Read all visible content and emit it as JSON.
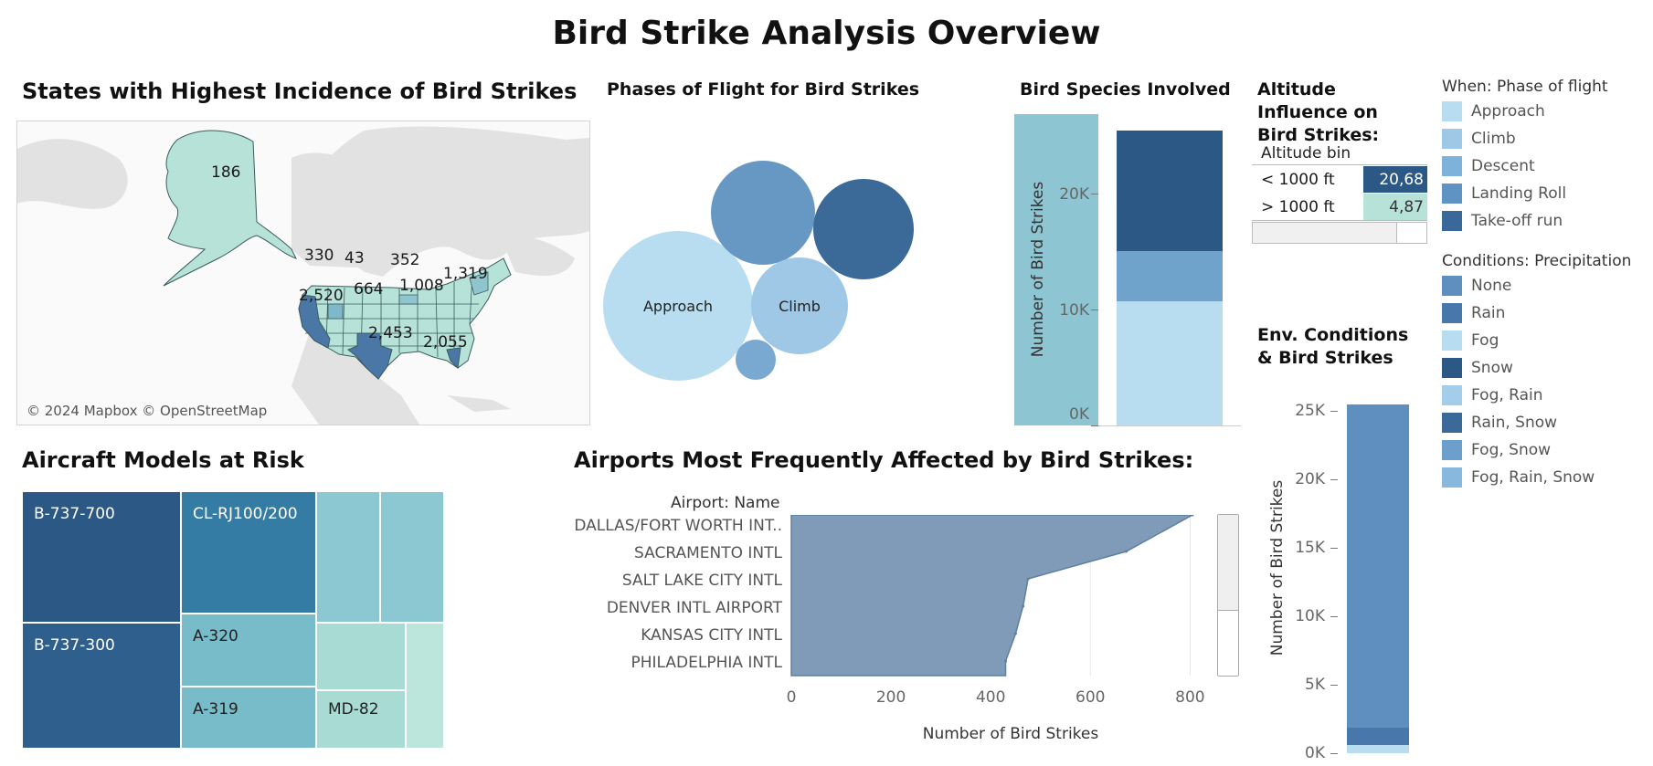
{
  "dashboard_title": "Bird Strike Analysis Overview",
  "map": {
    "title": "States with Highest Incidence of Bird Strikes",
    "attribution": "© 2024 Mapbox © OpenStreetMap",
    "labels": [
      {
        "state": "AK",
        "value": "186"
      },
      {
        "state": "WA",
        "value": "330"
      },
      {
        "state": "MT",
        "value": "43"
      },
      {
        "state": "MN",
        "value": "352"
      },
      {
        "state": "NY",
        "value": "1,319"
      },
      {
        "state": "CA",
        "value": "2,520"
      },
      {
        "state": "CO",
        "value": "664"
      },
      {
        "state": "IL",
        "value": "1,008"
      },
      {
        "state": "TX",
        "value": "2,453"
      },
      {
        "state": "FL",
        "value": "2,055"
      }
    ],
    "colors": {
      "land": "#e2e2e2",
      "low": "#b6e2d8",
      "high": "#4a77a6",
      "border": "#3a5d5d"
    }
  },
  "phases": {
    "title": "Phases of Flight for Bird Strikes",
    "bubbles": [
      {
        "label": "Approach",
        "color": "#b9ddf0"
      },
      {
        "label": "",
        "color": "#6798c3"
      },
      {
        "label": "",
        "color": "#3b6a99"
      },
      {
        "label": "Climb",
        "color": "#9ec8e6"
      },
      {
        "label": "",
        "color": "#79a9d1"
      }
    ]
  },
  "species": {
    "title": "Bird Species Involved",
    "ylabel": "Number of Bird Strikes",
    "ticks": [
      "20K",
      "10K",
      "0K"
    ],
    "ylim": [
      0,
      27000
    ],
    "segments": [
      {
        "value": 10800,
        "color": "#b9ddf0"
      },
      {
        "value": 4300,
        "color": "#6fa3cb"
      },
      {
        "value": 10500,
        "color": "#2c5885"
      }
    ]
  },
  "altitude": {
    "title": "Altitude Influence on Bird Strikes:",
    "header": "Altitude bin",
    "rows": [
      {
        "label": "< 1000 ft",
        "value": "20,68",
        "color": "#2c5885",
        "text_color": "#ffffff"
      },
      {
        "label": "> 1000 ft",
        "value": "4,87",
        "color": "#b6e2d8",
        "text_color": "#333333"
      }
    ]
  },
  "legend_phase": {
    "title": "When: Phase of flight",
    "items": [
      {
        "label": "Approach",
        "color": "#b9ddf0"
      },
      {
        "label": "Climb",
        "color": "#9ec8e6"
      },
      {
        "label": "Descent",
        "color": "#7fb2da"
      },
      {
        "label": "Landing Roll",
        "color": "#5f93c4"
      },
      {
        "label": "Take-off run",
        "color": "#3a6899"
      }
    ]
  },
  "legend_precip": {
    "title": "Conditions: Precipitation",
    "items": [
      {
        "label": "None",
        "color": "#5e8fbf"
      },
      {
        "label": "Rain",
        "color": "#4877ac"
      },
      {
        "label": "Fog",
        "color": "#b9ddf0"
      },
      {
        "label": "Snow",
        "color": "#2c5885"
      },
      {
        "label": "Fog, Rain",
        "color": "#a3cde9"
      },
      {
        "label": "Rain, Snow",
        "color": "#3b6a99"
      },
      {
        "label": "Fog, Snow",
        "color": "#6d9fcc"
      },
      {
        "label": "Fog, Rain, Snow",
        "color": "#88b8de"
      }
    ]
  },
  "env": {
    "title": "Env. Conditions & Bird Strikes",
    "ylabel": "Number of Bird Strikes",
    "ticks": [
      "25K",
      "20K",
      "15K",
      "10K",
      "5K",
      "0K"
    ],
    "ylim": [
      0,
      26000
    ],
    "segments": [
      {
        "value": 600,
        "color": "#b9ddf0"
      },
      {
        "value": 1300,
        "color": "#4877ac"
      },
      {
        "value": 23600,
        "color": "#5e8fbf"
      }
    ]
  },
  "aircraft": {
    "title": "Aircraft Models at Risk",
    "cells": [
      {
        "label": "B-737-700",
        "color": "#2c5885"
      },
      {
        "label": "B-737-300",
        "color": "#2f5f8c"
      },
      {
        "label": "CL-RJ100/200",
        "color": "#347ca3"
      },
      {
        "label": "A-320",
        "color": "#79bcc9"
      },
      {
        "label": "A-319",
        "color": "#79bcc9"
      },
      {
        "label": "",
        "color": "#8cc8d1"
      },
      {
        "label": "",
        "color": "#8cc8d1"
      },
      {
        "label": "MD-82",
        "color": "#a8dbd4"
      },
      {
        "label": "",
        "color": "#bce6dc"
      }
    ]
  },
  "airports": {
    "title": "Airports Most Frequently Affected by Bird Strikes:",
    "header": "Airport: Name",
    "names": [
      "DALLAS/FORT WORTH INT..",
      "SACRAMENTO INTL",
      "SALT LAKE CITY INTL",
      "DENVER INTL AIRPORT",
      "KANSAS CITY INTL",
      "PHILADELPHIA INTL"
    ],
    "xlabel": "Number of Bird Strikes",
    "xticks": [
      "0",
      "200",
      "400",
      "600",
      "800"
    ],
    "color": "#7f9bb8"
  },
  "chart_data": [
    {
      "type": "bar",
      "title": "Bird Species Involved",
      "ylabel": "Number of Bird Strikes",
      "ylim": [
        0,
        27000
      ],
      "categories": [
        ""
      ],
      "series": [
        {
          "values": [
            10800
          ]
        },
        {
          "values": [
            4300
          ]
        },
        {
          "values": [
            10500
          ]
        }
      ]
    },
    {
      "type": "area",
      "title": "Airports Most Frequently Affected by Bird Strikes:",
      "xlabel": "Number of Bird Strikes",
      "xlim": [
        0,
        880
      ],
      "categories": [
        "DALLAS/FORT WORTH INT..",
        "SACRAMENTO INTL",
        "SALT LAKE CITY INTL",
        "DENVER INTL AIRPORT",
        "KANSAS CITY INTL",
        "PHILADELPHIA INTL"
      ],
      "values": [
        805,
        672,
        475,
        465,
        450,
        430
      ]
    },
    {
      "type": "bar",
      "title": "Env. Conditions & Bird Strikes",
      "ylabel": "Number of Bird Strikes",
      "ylim": [
        0,
        26000
      ],
      "categories": [
        ""
      ],
      "series": [
        {
          "name": "Fog",
          "values": [
            600
          ]
        },
        {
          "name": "Rain",
          "values": [
            1300
          ]
        },
        {
          "name": "None",
          "values": [
            23600
          ]
        }
      ]
    }
  ]
}
